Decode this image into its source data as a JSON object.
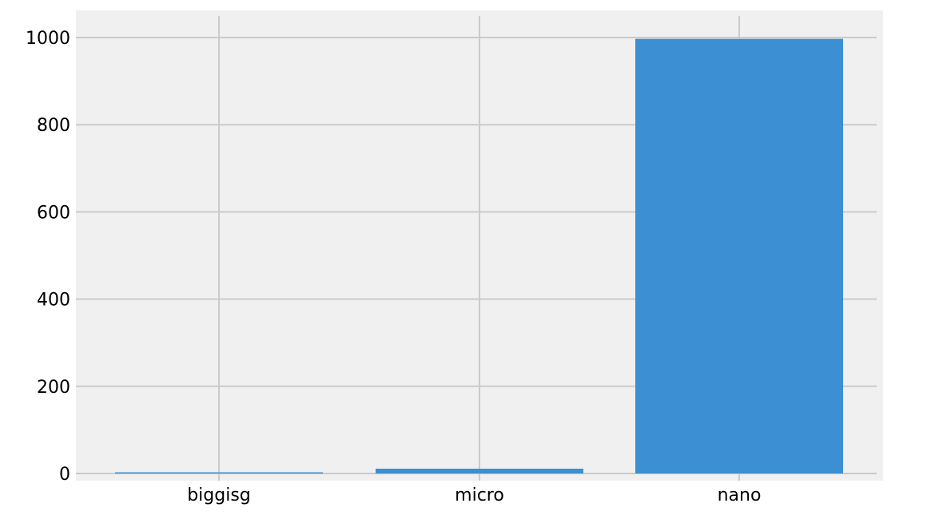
{
  "chart_data": {
    "type": "bar",
    "title": "",
    "xlabel": "",
    "ylabel": "",
    "categories": [
      "biggisg",
      "micro",
      "nano"
    ],
    "values": [
      2,
      11,
      997
    ],
    "ylim": [
      0,
      1050
    ],
    "yticks": [
      0,
      200,
      400,
      600,
      800,
      1000
    ],
    "grid": true,
    "legend": "none",
    "colors": {
      "bar": "#3c8fd2",
      "plot_background": "#f0f0f0",
      "grid": "#cbcbcb",
      "text": "#000000"
    }
  }
}
